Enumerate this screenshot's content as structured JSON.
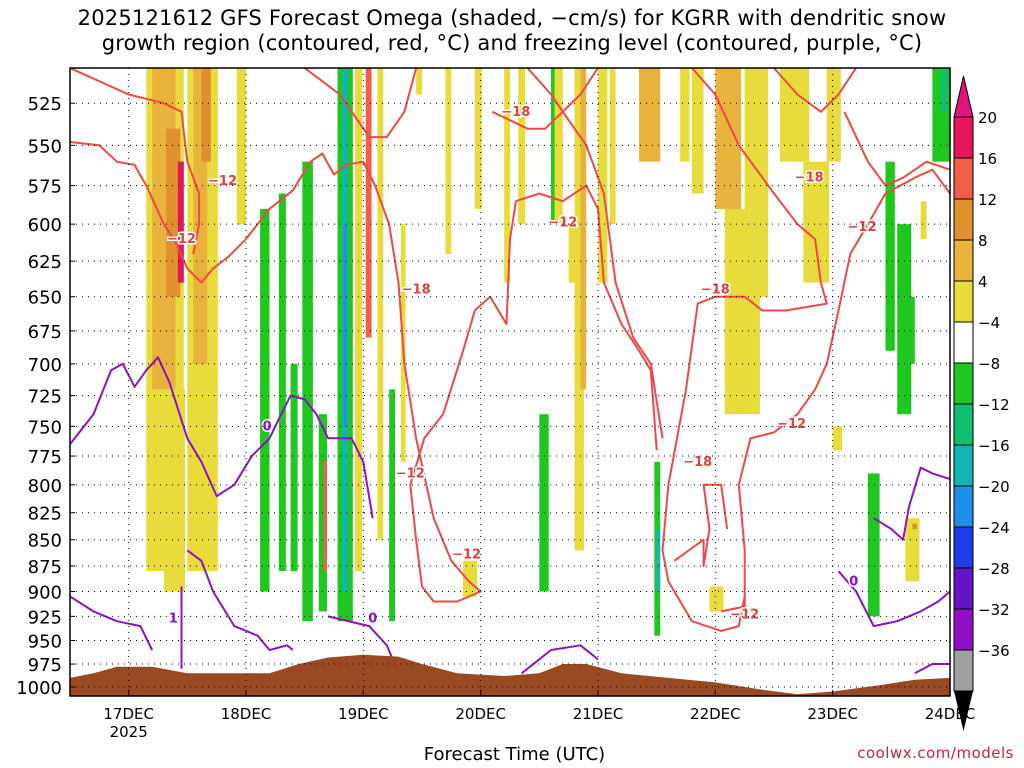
{
  "title": "2025121612 GFS Forecast Omega (shaded, −cm/s) for KGRR with dendritic snow\ngrowth region (contoured, red, °C) and freezing level (contoured, purple, °C)",
  "credit": "coolwx.com/models",
  "colors": {
    "terrain": "#9a4a22",
    "dgz_contour": "#f04848",
    "freezing_contour": "#9010c8",
    "up_4": "#e8dc3c",
    "up_8": "#e8b23c",
    "up_12": "#e0902c",
    "up_16": "#f06048",
    "up_20": "#e8145c",
    "down_4": "#1ec81e",
    "down_8": "#10c070",
    "down_12": "#12b4b4",
    "down_16": "#1e90e8",
    "down_20": "#1e3ce8",
    "down_24": "#6414c8",
    "down_28": "#9010c8",
    "down_32": "#a0a0a0",
    "down_36": "#000000"
  },
  "chart_data": {
    "type": "heatmap",
    "title": "2025121612 GFS Forecast Omega (shaded, −cm/s) for KGRR with dendritic snow growth region (contoured, red, °C) and freezing level (contoured, purple, °C)",
    "xlabel": "Forecast Time (UTC)",
    "ylabel": "",
    "x_ticks": [
      "17DEC",
      "18DEC",
      "19DEC",
      "20DEC",
      "21DEC",
      "22DEC",
      "23DEC",
      "24DEC"
    ],
    "x_year_label": "2025",
    "x_range_days": [
      16.5,
      24.0
    ],
    "y_ticks": [
      525,
      550,
      575,
      600,
      625,
      650,
      675,
      700,
      725,
      750,
      775,
      800,
      825,
      850,
      875,
      900,
      925,
      950,
      975,
      1000
    ],
    "y_range_hpa": [
      505,
      1010
    ],
    "y_scale": "log-pressure",
    "grid": true,
    "colorbar": {
      "labels": [
        "20",
        "16",
        "12",
        "8",
        "4",
        "−4",
        "−8",
        "−12",
        "−16",
        "−20",
        "−24",
        "−28",
        "−32",
        "−36"
      ]
    },
    "contour_labels": [
      {
        "text": "−18",
        "x": 20.3,
        "p": 530
      },
      {
        "text": "−12",
        "x": 17.8,
        "p": 572
      },
      {
        "text": "−12",
        "x": 17.45,
        "p": 610
      },
      {
        "text": "−12",
        "x": 20.7,
        "p": 599
      },
      {
        "text": "−18",
        "x": 22.8,
        "p": 570
      },
      {
        "text": "−12",
        "x": 23.25,
        "p": 602
      },
      {
        "text": "−18",
        "x": 19.45,
        "p": 645
      },
      {
        "text": "−18",
        "x": 22.0,
        "p": 645
      },
      {
        "text": "−12",
        "x": 22.65,
        "p": 748
      },
      {
        "text": "−18",
        "x": 21.85,
        "p": 780
      },
      {
        "text": "−12",
        "x": 19.4,
        "p": 790
      },
      {
        "text": "−12",
        "x": 19.88,
        "p": 864
      },
      {
        "text": "−12",
        "x": 22.25,
        "p": 923
      },
      {
        "text": "0",
        "x": 18.18,
        "p": 750
      },
      {
        "text": "0",
        "x": 19.08,
        "p": 927
      },
      {
        "text": "0",
        "x": 23.18,
        "p": 890
      },
      {
        "text": "1",
        "x": 17.38,
        "p": 927
      }
    ]
  }
}
